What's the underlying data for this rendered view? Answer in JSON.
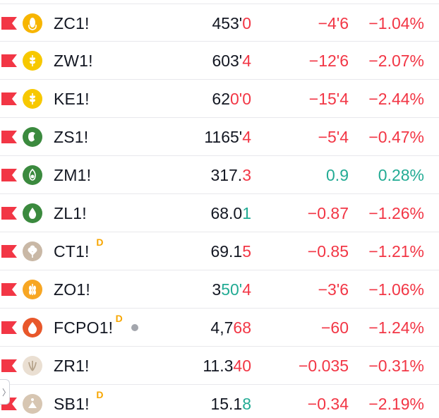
{
  "colors": {
    "negative": "#f23645",
    "positive": "#22ab94",
    "flag": "#f23645",
    "delay_badge": "#f7a600"
  },
  "handle": {
    "icon": "chevron-right-icon",
    "glyph": "〉"
  },
  "rows": [
    {
      "symbol": "ZC1!",
      "icon": "corn-icon",
      "logo_color": "#f7b500",
      "delayed": false,
      "dot": false,
      "last_base": "453'",
      "last_hi": "0",
      "last_hi_color": "neg",
      "change": "−4'6",
      "change_pct": "−1.04%",
      "dir": "neg"
    },
    {
      "symbol": "ZW1!",
      "icon": "wheat-icon",
      "logo_color": "#f7c800",
      "delayed": false,
      "dot": false,
      "last_base": "603'",
      "last_hi": "4",
      "last_hi_color": "neg",
      "change": "−12'6",
      "change_pct": "−2.07%",
      "dir": "neg"
    },
    {
      "symbol": "KE1!",
      "icon": "wheat-icon",
      "logo_color": "#f7c800",
      "delayed": false,
      "dot": false,
      "last_base": "62",
      "last_hi": "0'0",
      "last_hi_color": "neg",
      "change": "−15'4",
      "change_pct": "−2.44%",
      "dir": "neg"
    },
    {
      "symbol": "ZS1!",
      "icon": "soybean-icon",
      "logo_color": "#3b8a3e",
      "delayed": false,
      "dot": false,
      "last_base": "1165'",
      "last_hi": "4",
      "last_hi_color": "neg",
      "change": "−5'4",
      "change_pct": "−0.47%",
      "dir": "neg"
    },
    {
      "symbol": "ZM1!",
      "icon": "soybean-meal-icon",
      "logo_color": "#3b8a3e",
      "delayed": false,
      "dot": false,
      "last_base": "317.",
      "last_hi": "3",
      "last_hi_color": "neg",
      "change": "0.9",
      "change_pct": "0.28%",
      "dir": "pos"
    },
    {
      "symbol": "ZL1!",
      "icon": "oil-drop-icon",
      "logo_color": "#3b8a3e",
      "delayed": false,
      "dot": false,
      "last_base": "68.0",
      "last_hi": "1",
      "last_hi_color": "pos",
      "change": "−0.87",
      "change_pct": "−1.26%",
      "dir": "neg"
    },
    {
      "symbol": "CT1!",
      "icon": "cotton-icon",
      "logo_color": "#c9b8a6",
      "delayed": true,
      "dot": false,
      "last_base": "69.1",
      "last_hi": "5",
      "last_hi_color": "neg",
      "change": "−0.85",
      "change_pct": "−1.21%",
      "dir": "neg"
    },
    {
      "symbol": "ZO1!",
      "icon": "oats-icon",
      "logo_color": "#f7a623",
      "delayed": false,
      "dot": false,
      "last_base": "3",
      "last_hi": "50'",
      "last_hi_color": "pos",
      "last_hi2": "4",
      "last_hi2_color": "neg",
      "change": "−3'6",
      "change_pct": "−1.06%",
      "dir": "neg"
    },
    {
      "symbol": "FCPO1!",
      "icon": "palm-oil-drop-icon",
      "logo_color": "#e8572a",
      "delayed": true,
      "dot": true,
      "last_base": "4,7",
      "last_hi": "68",
      "last_hi_color": "neg",
      "change": "−60",
      "change_pct": "−1.24%",
      "dir": "neg"
    },
    {
      "symbol": "ZR1!",
      "icon": "rice-icon",
      "logo_color": "#eadfd2",
      "delayed": false,
      "dot": false,
      "last_base": "11.3",
      "last_hi": "40",
      "last_hi_color": "neg",
      "change": "−0.035",
      "change_pct": "−0.31%",
      "dir": "neg"
    },
    {
      "symbol": "SB1!",
      "icon": "sugar-icon",
      "logo_color": "#d7c6b2",
      "delayed": true,
      "dot": false,
      "last_base": "15.1",
      "last_hi": "8",
      "last_hi_color": "pos",
      "change": "−0.34",
      "change_pct": "−2.19%",
      "dir": "neg"
    }
  ],
  "delay_label": "D"
}
